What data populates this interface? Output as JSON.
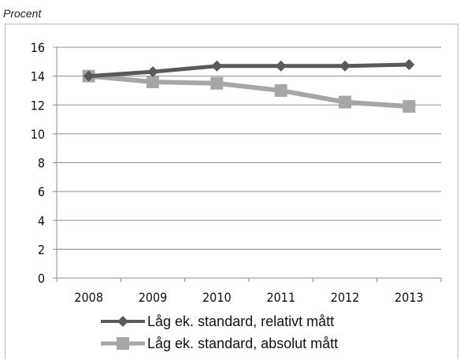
{
  "unit_label": "Procent",
  "chart_data": {
    "type": "line",
    "title": "",
    "xlabel": "",
    "ylabel": "Procent",
    "categories": [
      "2008",
      "2009",
      "2010",
      "2011",
      "2012",
      "2013"
    ],
    "ylim": [
      0,
      16
    ],
    "yticks": [
      0,
      2,
      4,
      6,
      8,
      10,
      12,
      14,
      16
    ],
    "grid": true,
    "legend_position": "bottom",
    "series": [
      {
        "name": "Låg ek. standard, relativt mått",
        "values": [
          14.0,
          14.3,
          14.7,
          14.7,
          14.7,
          14.8
        ],
        "color": "#595959",
        "marker": "diamond"
      },
      {
        "name": "Låg ek. standard, absolut mått",
        "values": [
          14.0,
          13.6,
          13.5,
          13.0,
          12.2,
          11.9
        ],
        "color": "#a6a6a6",
        "marker": "square"
      }
    ]
  }
}
